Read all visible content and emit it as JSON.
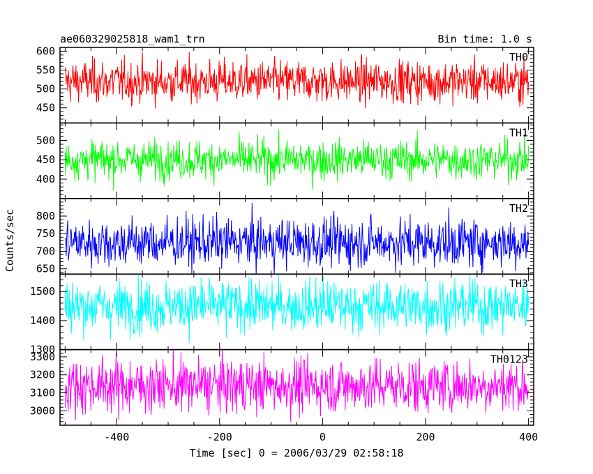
{
  "chart_data": {
    "type": "line",
    "title": "ae060329025818_wam1_trn",
    "subtitle": "Bin time: 1.0 s",
    "xlabel": "Time [sec] 0 = 2006/03/29 02:58:18",
    "ylabel": "Counts/sec",
    "xlim": [
      -510,
      410
    ],
    "xticks": [
      -400,
      -200,
      0,
      200,
      400
    ],
    "x_data_range": [
      -500,
      400
    ],
    "grid": false,
    "series": [
      {
        "name": "TH0",
        "color": "#ff0000",
        "mean": 520,
        "spread": 28,
        "ylim": [
          410,
          610
        ],
        "yticks": [
          450,
          500,
          550,
          600
        ]
      },
      {
        "name": "TH1",
        "color": "#00ff00",
        "mean": 450,
        "spread": 25,
        "ylim": [
          350,
          545
        ],
        "yticks": [
          400,
          450,
          500
        ]
      },
      {
        "name": "TH2",
        "color": "#0000ff",
        "mean": 725,
        "spread": 35,
        "ylim": [
          635,
          850
        ],
        "yticks": [
          650,
          700,
          750,
          800
        ]
      },
      {
        "name": "TH3",
        "color": "#00ffff",
        "mean": 1450,
        "spread": 45,
        "ylim": [
          1300,
          1560
        ],
        "yticks": [
          1300,
          1400,
          1500
        ]
      },
      {
        "name": "TH0123",
        "color": "#ff00ff",
        "mean": 3140,
        "spread": 75,
        "ylim": [
          2920,
          3340
        ],
        "yticks": [
          3000,
          3100,
          3200,
          3300
        ]
      }
    ]
  }
}
